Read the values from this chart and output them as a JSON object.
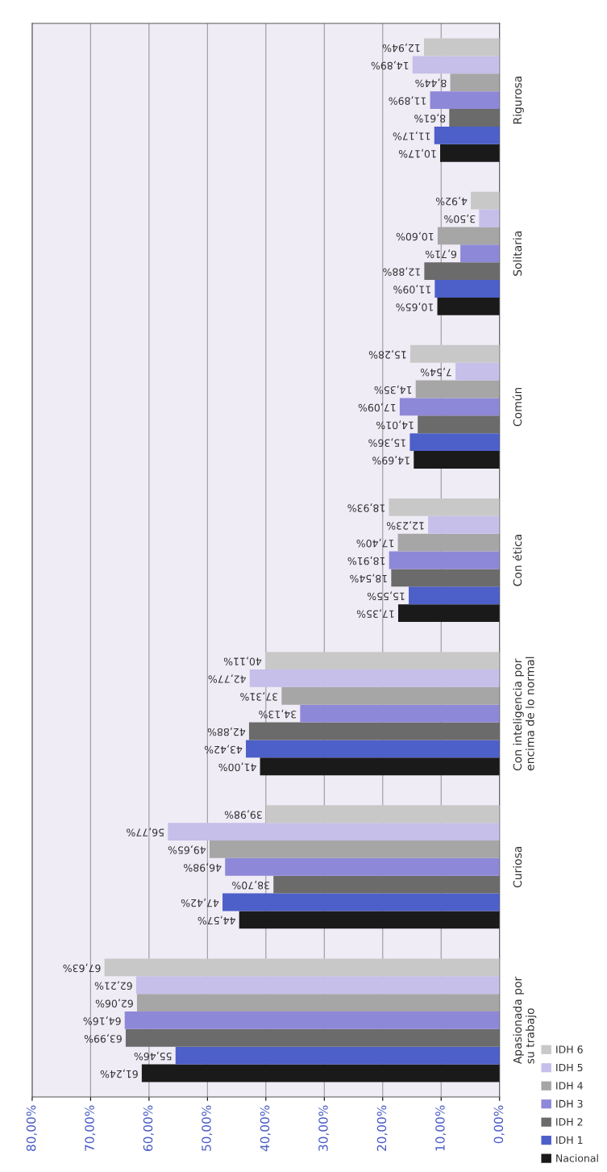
{
  "chart_data": {
    "type": "bar",
    "orientation": "horizontal",
    "categories": [
      "Rigurosa",
      "Solitaria",
      "Común",
      "Con ética",
      "Con inteligencia por\nencima de lo normal",
      "Curiosa",
      "Apasionada por\nsu trabajo"
    ],
    "series": [
      {
        "name": "Nacional",
        "color": "#1a1a1a",
        "values": [
          10.17,
          10.65,
          14.69,
          17.35,
          41.0,
          44.57,
          61.24
        ],
        "value_labels": [
          "10,17%",
          "10,65%",
          "14,69%",
          "17,35%",
          "41,00%",
          "44,57%",
          "61,24%"
        ]
      },
      {
        "name": "IDH 1",
        "color": "#4d5fc8",
        "values": [
          11.17,
          11.09,
          15.36,
          15.55,
          43.42,
          47.42,
          55.46
        ],
        "value_labels": [
          "11,17%",
          "11,09%",
          "15,36%",
          "15,55%",
          "43,42%",
          "47,42%",
          "55,46%"
        ]
      },
      {
        "name": "IDH 2",
        "color": "#6b6b6b",
        "values": [
          8.61,
          12.88,
          14.01,
          18.54,
          42.88,
          38.7,
          63.99
        ],
        "value_labels": [
          "8,61%",
          "12,88%",
          "14,01%",
          "18,54%",
          "42,88%",
          "38,70%",
          "63,99%"
        ]
      },
      {
        "name": "IDH 3",
        "color": "#8e88d8",
        "values": [
          11.89,
          6.71,
          17.09,
          18.91,
          34.13,
          46.98,
          64.16
        ],
        "value_labels": [
          "11,89%",
          "6,71%",
          "17,09%",
          "18,91%",
          "34,13%",
          "46,98%",
          "64,16%"
        ]
      },
      {
        "name": "IDH 4",
        "color": "#a6a6a6",
        "values": [
          8.44,
          10.6,
          14.35,
          17.4,
          37.31,
          49.65,
          62.06
        ],
        "value_labels": [
          "8,44%",
          "10,60%",
          "14,35%",
          "17,40%",
          "37,31%",
          "49,65%",
          "62,06%"
        ]
      },
      {
        "name": "IDH 5",
        "color": "#c5bfea",
        "values": [
          14.89,
          3.5,
          7.54,
          12.23,
          42.77,
          56.77,
          62.21
        ],
        "value_labels": [
          "14,89%",
          "3,50%",
          "7,54%",
          "12,23%",
          "42,77%",
          "56,77%",
          "62,21%"
        ]
      },
      {
        "name": "IDH 6",
        "color": "#c8c8c8",
        "values": [
          12.94,
          4.92,
          15.28,
          18.93,
          40.11,
          39.98,
          67.63
        ],
        "value_labels": [
          "12,94%",
          "4,92%",
          "15,28%",
          "18,93%",
          "40,11%",
          "39,98%",
          "67,63%"
        ]
      }
    ],
    "xlim": [
      80,
      0
    ],
    "xticks": [
      {
        "value": 80,
        "label": "80,00%"
      },
      {
        "value": 70,
        "label": "70,00%"
      },
      {
        "value": 60,
        "label": "60,00%"
      },
      {
        "value": 50,
        "label": "50,00%"
      },
      {
        "value": 40,
        "label": "40,00%"
      },
      {
        "value": 30,
        "label": "30,00%"
      },
      {
        "value": 20,
        "label": "20,00%"
      },
      {
        "value": 10,
        "label": "10,00%"
      },
      {
        "value": 0,
        "label": "0,00%"
      }
    ],
    "grid": "x",
    "legend": "right"
  }
}
